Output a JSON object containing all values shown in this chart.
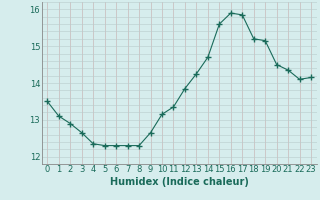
{
  "x": [
    0,
    1,
    2,
    3,
    4,
    5,
    6,
    7,
    8,
    9,
    10,
    11,
    12,
    13,
    14,
    15,
    16,
    17,
    18,
    19,
    20,
    21,
    22,
    23
  ],
  "y": [
    13.5,
    13.1,
    12.9,
    12.65,
    12.35,
    12.3,
    12.3,
    12.3,
    12.3,
    12.65,
    13.15,
    13.35,
    13.85,
    14.25,
    14.7,
    15.6,
    15.9,
    15.85,
    15.2,
    15.15,
    14.5,
    14.35,
    14.1,
    14.15
  ],
  "line_color": "#1a6b5a",
  "marker": "+",
  "marker_size": 4,
  "bg_color": "#d6eded",
  "vgrid_color": "#c8b8b8",
  "hgrid_color": "#b8cccc",
  "axis_color": "#888888",
  "xlabel": "Humidex (Indice chaleur)",
  "ylabel": "",
  "xlim": [
    -0.5,
    23.5
  ],
  "ylim": [
    11.8,
    16.2
  ],
  "yticks": [
    12,
    13,
    14,
    15,
    16
  ],
  "xticks": [
    0,
    1,
    2,
    3,
    4,
    5,
    6,
    7,
    8,
    9,
    10,
    11,
    12,
    13,
    14,
    15,
    16,
    17,
    18,
    19,
    20,
    21,
    22,
    23
  ],
  "label_fontsize": 7,
  "tick_fontsize": 6,
  "tick_color": "#1a6b5a",
  "label_color": "#1a6b5a",
  "spine_color": "#888888"
}
